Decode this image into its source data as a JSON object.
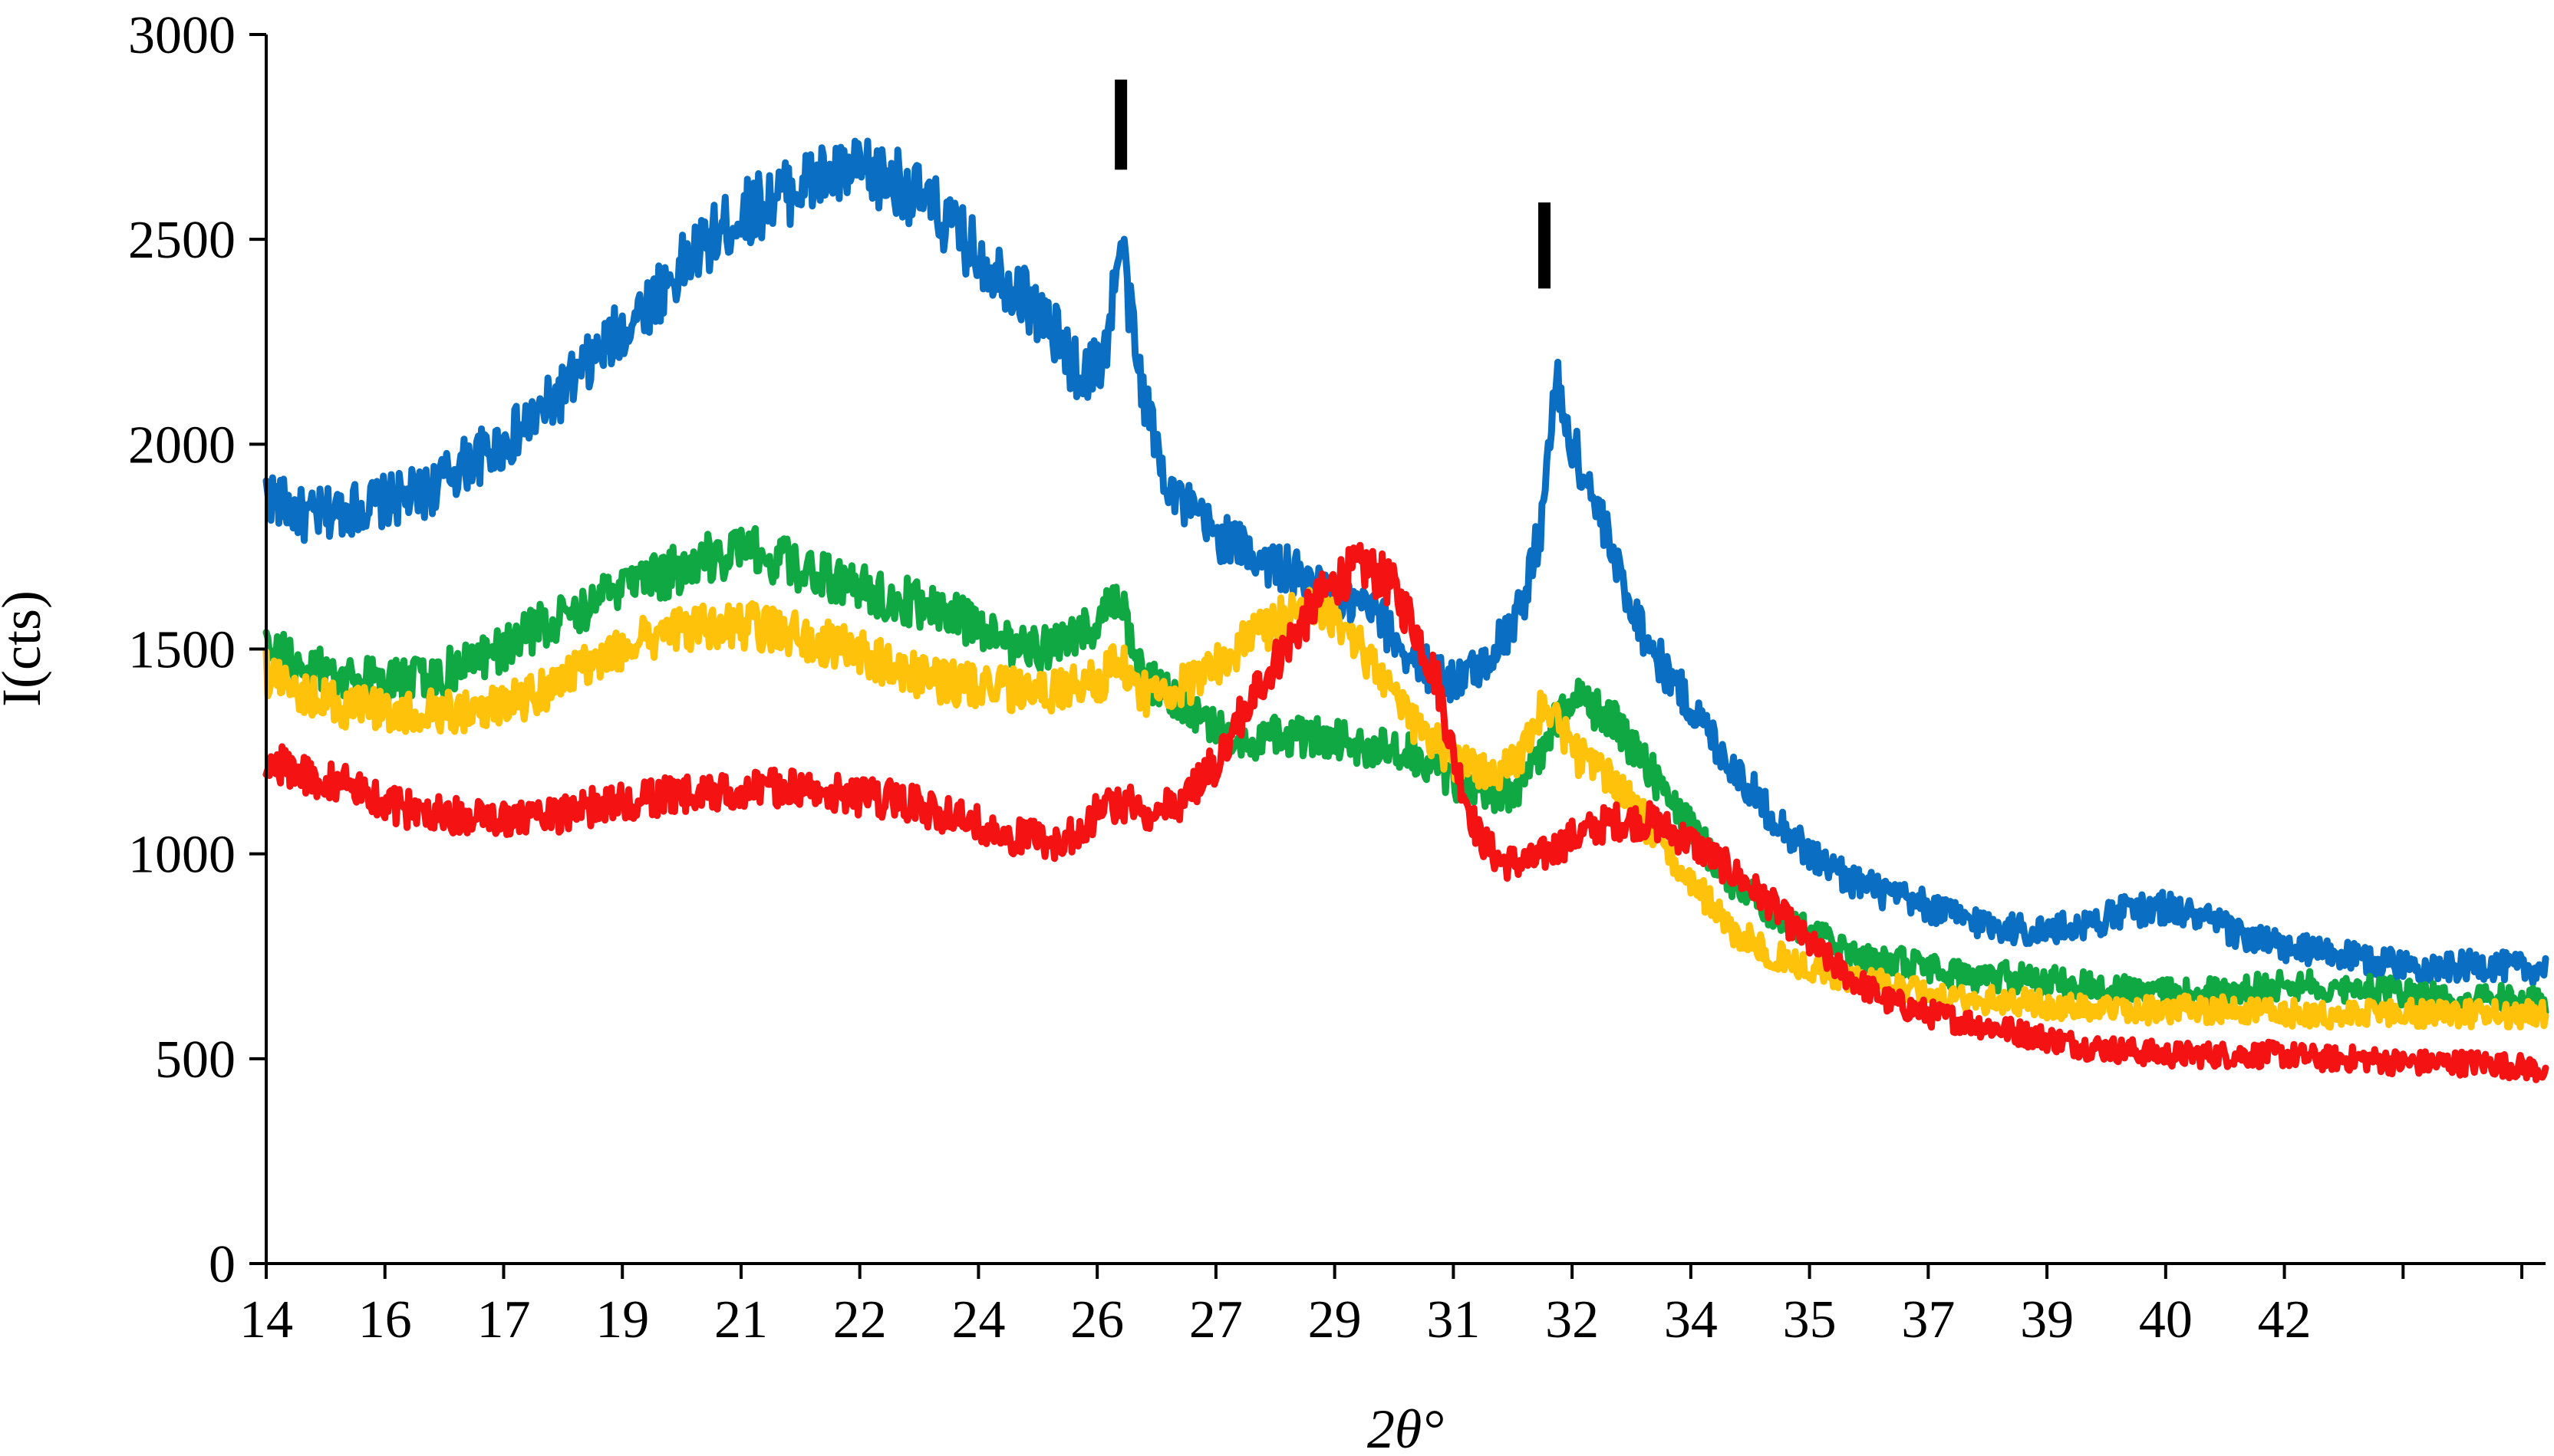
{
  "chart_data": {
    "type": "line",
    "title": "",
    "xlabel": "2θ°",
    "ylabel": "I(cts)",
    "xlim": [
      14,
      42.8
    ],
    "ylim": [
      0,
      3000
    ],
    "grid": false,
    "legend": "none",
    "y_ticks": [
      0,
      500,
      1000,
      1500,
      2000,
      2500,
      3000
    ],
    "x_tick_values": [
      14.0,
      15.5,
      17.0,
      18.5,
      20.0,
      21.5,
      23.0,
      24.5,
      26.0,
      27.5,
      29.0,
      30.5,
      32.0,
      33.5,
      35.0,
      36.5,
      38.0,
      39.5,
      41.0,
      42.5
    ],
    "x_tick_labels": [
      "14",
      "16",
      "17",
      "19",
      "21",
      "22",
      "24",
      "26",
      "27",
      "29",
      "31",
      "32",
      "34",
      "35",
      "37",
      "39",
      "40",
      "42"
    ],
    "x_tick_label_positions": [
      14.0,
      15.5,
      17.0,
      18.5,
      20.0,
      21.5,
      23.0,
      24.5,
      26.0,
      27.5,
      29.0,
      30.5,
      32.0,
      33.5,
      35.0,
      36.5,
      38.0,
      39.5
    ],
    "markers": [
      {
        "x": 24.8,
        "y_top": 2890,
        "y_bottom": 2670
      },
      {
        "x": 30.15,
        "y_top": 2590,
        "y_bottom": 2380
      }
    ],
    "series": [
      {
        "color": "#0a6fc2",
        "x": [
          14.0,
          14.5,
          15.0,
          15.5,
          16.0,
          16.5,
          17.0,
          17.5,
          18.0,
          18.5,
          19.0,
          19.5,
          20.0,
          20.5,
          21.0,
          21.5,
          22.0,
          22.5,
          23.0,
          23.5,
          24.0,
          24.3,
          24.6,
          24.8,
          25.0,
          25.3,
          25.6,
          26.0,
          26.5,
          27.0,
          27.5,
          28.0,
          28.5,
          29.0,
          29.3,
          29.6,
          29.9,
          30.1,
          30.3,
          30.5,
          30.8,
          31.1,
          31.5,
          32.0,
          32.5,
          33.0,
          33.5,
          34.0,
          34.5,
          35.0,
          35.5,
          36.0,
          36.5,
          37.0,
          37.5,
          38.0,
          38.5,
          39.0,
          39.5,
          40.0,
          40.5,
          41.0,
          41.5,
          42.0,
          42.5,
          42.8
        ],
        "y": [
          1880,
          1820,
          1840,
          1860,
          1880,
          1950,
          2000,
          2080,
          2180,
          2280,
          2380,
          2480,
          2560,
          2610,
          2650,
          2660,
          2640,
          2560,
          2460,
          2380,
          2260,
          2160,
          2220,
          2500,
          2200,
          1950,
          1850,
          1780,
          1730,
          1680,
          1620,
          1590,
          1470,
          1420,
          1450,
          1520,
          1620,
          1800,
          2150,
          2000,
          1850,
          1680,
          1500,
          1360,
          1220,
          1100,
          1000,
          940,
          900,
          870,
          840,
          820,
          810,
          830,
          860,
          870,
          840,
          800,
          770,
          760,
          740,
          730,
          720,
          730,
          720,
          720
        ]
      },
      {
        "color": "#10a843",
        "x": [
          14.0,
          14.5,
          15.0,
          15.5,
          16.0,
          16.5,
          17.0,
          17.5,
          18.0,
          18.5,
          19.0,
          19.5,
          20.0,
          20.5,
          21.0,
          21.5,
          22.0,
          22.5,
          23.0,
          23.5,
          24.0,
          24.5,
          24.8,
          25.0,
          25.5,
          26.0,
          26.5,
          27.0,
          27.5,
          28.0,
          28.5,
          29.0,
          29.5,
          29.8,
          30.1,
          30.3,
          30.6,
          31.0,
          31.5,
          32.0,
          32.5,
          33.0,
          33.5,
          34.0,
          34.5,
          35.0,
          35.5,
          36.0,
          36.5,
          37.0,
          37.5,
          38.0,
          38.5,
          39.0,
          39.5,
          40.0,
          40.5,
          41.0,
          41.5,
          42.0,
          42.5,
          42.8
        ],
        "y": [
          1500,
          1460,
          1430,
          1420,
          1430,
          1460,
          1500,
          1560,
          1600,
          1640,
          1680,
          1720,
          1740,
          1720,
          1680,
          1650,
          1620,
          1600,
          1550,
          1510,
          1500,
          1570,
          1610,
          1450,
          1370,
          1300,
          1280,
          1290,
          1280,
          1260,
          1240,
          1180,
          1140,
          1160,
          1250,
          1320,
          1380,
          1330,
          1200,
          1060,
          940,
          860,
          810,
          760,
          740,
          720,
          700,
          700,
          690,
          680,
          670,
          660,
          660,
          670,
          680,
          680,
          670,
          660,
          650,
          650,
          640,
          640
        ]
      },
      {
        "color": "#ffc20a",
        "x": [
          14.0,
          14.5,
          15.0,
          15.5,
          16.0,
          16.5,
          17.0,
          17.5,
          18.0,
          18.5,
          19.0,
          19.5,
          20.0,
          20.5,
          21.0,
          21.5,
          22.0,
          22.5,
          23.0,
          23.5,
          24.0,
          24.5,
          24.8,
          25.0,
          25.5,
          26.0,
          26.5,
          27.0,
          27.3,
          27.6,
          28.0,
          28.5,
          29.0,
          29.5,
          29.8,
          30.0,
          30.2,
          30.5,
          31.0,
          31.5,
          32.0,
          32.5,
          33.0,
          33.5,
          34.0,
          34.5,
          35.0,
          35.5,
          36.0,
          36.5,
          37.0,
          37.5,
          38.0,
          38.5,
          39.0,
          39.5,
          40.0,
          40.5,
          41.0,
          41.5,
          42.0,
          42.5,
          42.8
        ],
        "y": [
          1440,
          1390,
          1360,
          1350,
          1350,
          1350,
          1360,
          1400,
          1460,
          1500,
          1540,
          1560,
          1560,
          1540,
          1520,
          1490,
          1450,
          1420,
          1410,
          1400,
          1400,
          1420,
          1470,
          1390,
          1400,
          1460,
          1530,
          1590,
          1600,
          1560,
          1450,
          1320,
          1230,
          1190,
          1220,
          1320,
          1370,
          1250,
          1180,
          1060,
          930,
          820,
          760,
          720,
          700,
          680,
          660,
          650,
          640,
          630,
          620,
          620,
          620,
          620,
          620,
          610,
          610,
          610,
          610,
          610,
          610,
          610,
          610
        ]
      },
      {
        "color": "#f41212",
        "x": [
          14.0,
          14.5,
          15.0,
          15.5,
          16.0,
          16.5,
          17.0,
          17.5,
          18.0,
          18.5,
          19.0,
          19.5,
          20.0,
          20.5,
          21.0,
          21.5,
          22.0,
          22.5,
          23.0,
          23.5,
          24.0,
          24.3,
          24.6,
          24.9,
          25.2,
          25.5,
          26.0,
          26.5,
          27.0,
          27.3,
          27.6,
          27.9,
          28.2,
          28.5,
          28.8,
          29.0,
          29.3,
          29.6,
          30.0,
          30.5,
          31.0,
          31.5,
          32.0,
          32.5,
          33.0,
          33.5,
          34.0,
          34.5,
          35.0,
          35.5,
          36.0,
          36.5,
          37.0,
          37.5,
          38.0,
          38.5,
          39.0,
          39.5,
          40.0,
          40.5,
          41.0,
          41.5,
          42.0,
          42.5,
          42.8
        ],
        "y": [
          1230,
          1190,
          1170,
          1120,
          1100,
          1090,
          1080,
          1090,
          1110,
          1130,
          1140,
          1150,
          1160,
          1160,
          1150,
          1140,
          1130,
          1100,
          1070,
          1040,
          1030,
          1060,
          1120,
          1120,
          1100,
          1120,
          1220,
          1400,
          1540,
          1620,
          1680,
          1700,
          1660,
          1560,
          1420,
          1240,
          1050,
          980,
          980,
          1040,
          1080,
          1080,
          1030,
          960,
          880,
          780,
          700,
          640,
          610,
          590,
          570,
          550,
          530,
          520,
          510,
          510,
          510,
          510,
          500,
          500,
          490,
          490,
          490,
          480,
          470
        ]
      }
    ]
  }
}
